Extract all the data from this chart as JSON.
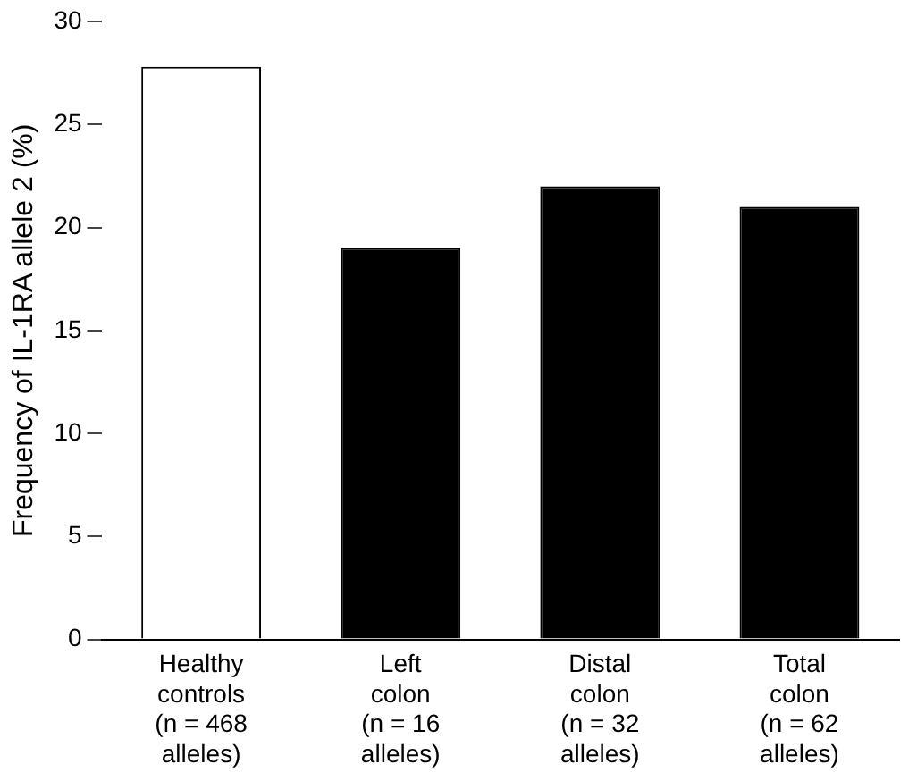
{
  "chart_data": {
    "type": "bar",
    "ylabel": "Frequency of IL-1RA allele 2 (%)",
    "categories": [
      "Healthy\ncontrols\n(n = 468\nalleles)",
      "Left\ncolon\n(n = 16\nalleles)",
      "Distal\ncolon\n(n = 32\nalleles)",
      "Total\ncolon\n(n = 62\nalleles)"
    ],
    "values": [
      27.8,
      19,
      22,
      21
    ],
    "colors": [
      "#ffffff",
      "#000000",
      "#000000",
      "#000000"
    ],
    "ylim": [
      0,
      30
    ],
    "yticks": [
      0,
      5,
      10,
      15,
      20,
      25,
      30
    ],
    "grid": false,
    "legend": false
  }
}
